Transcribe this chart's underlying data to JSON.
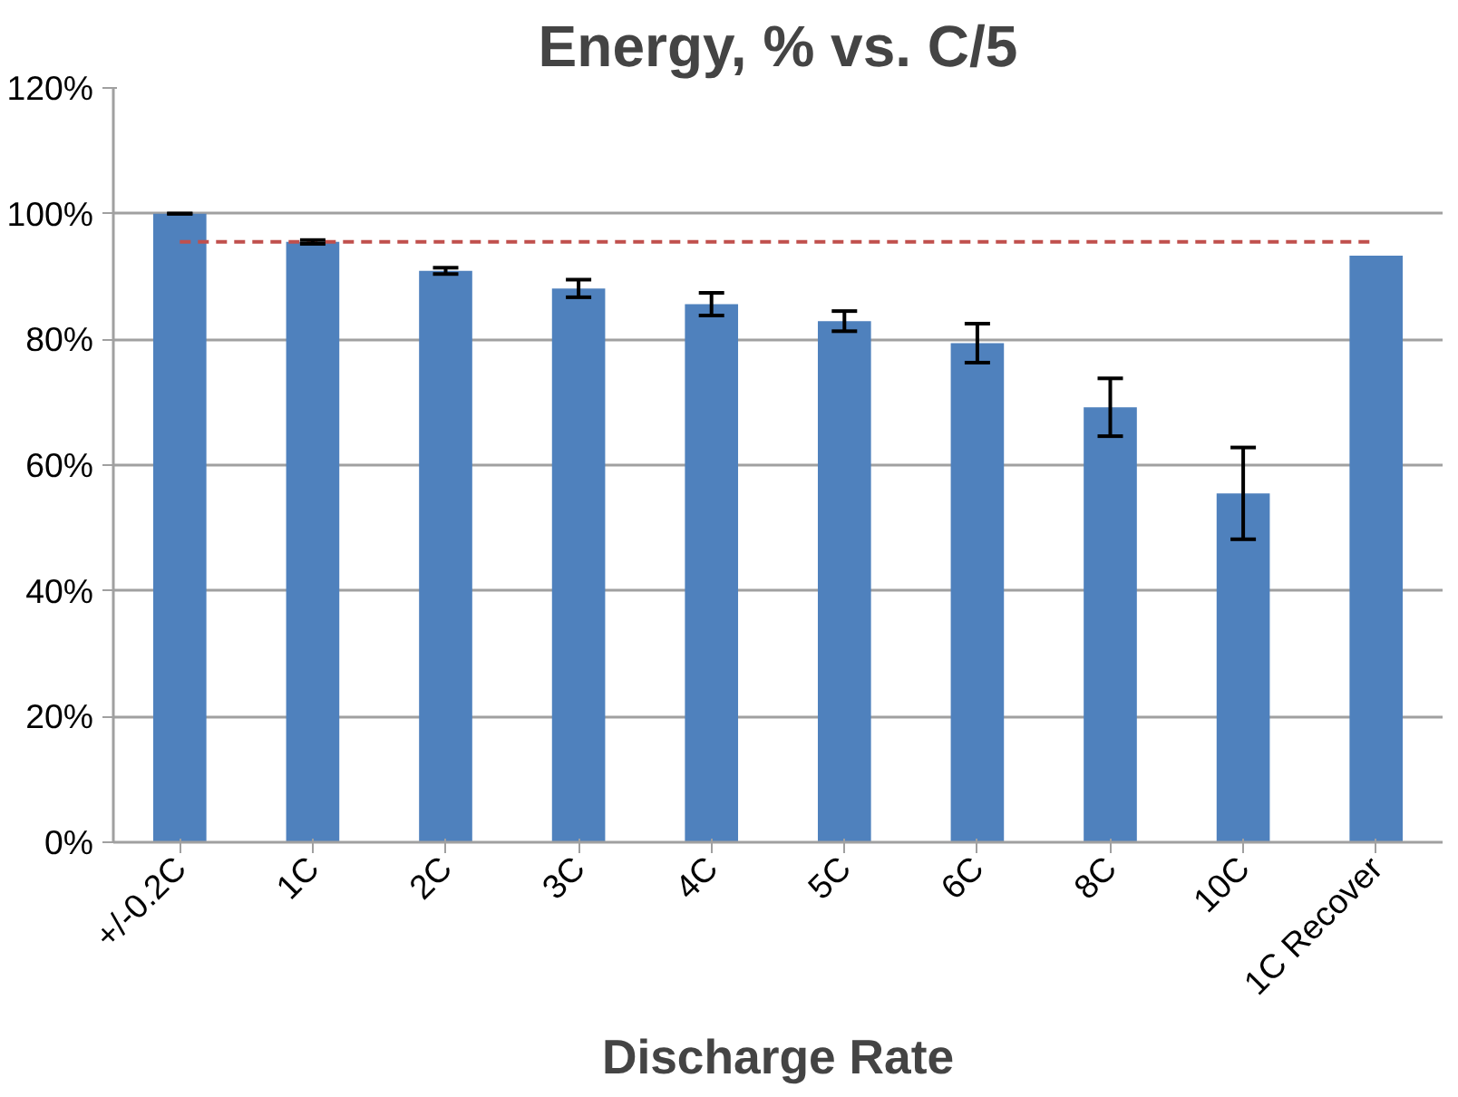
{
  "chart_data": {
    "type": "bar",
    "title": "Energy, % vs. C/5",
    "xlabel": "Discharge Rate",
    "categories": [
      "+/-0.2C",
      "1C",
      "2C",
      "3C",
      "4C",
      "5C",
      "6C",
      "8C",
      "10C",
      "1C Recover"
    ],
    "values": [
      100,
      95.5,
      90.9,
      88.1,
      85.6,
      82.9,
      79.4,
      69.2,
      55.5,
      93.3
    ],
    "errors": [
      0,
      0.3,
      0.5,
      1.4,
      1.8,
      1.6,
      3.1,
      4.6,
      7.3,
      null
    ],
    "color": "#4f81bd",
    "ylim": [
      0,
      120
    ],
    "yticks": [
      {
        "value": 0,
        "label": "0%"
      },
      {
        "value": 20,
        "label": "20%"
      },
      {
        "value": 40,
        "label": "40%"
      },
      {
        "value": 60,
        "label": "60%"
      },
      {
        "value": 80,
        "label": "80%"
      },
      {
        "value": 100,
        "label": "100%"
      },
      {
        "value": 120,
        "label": "120%"
      }
    ],
    "ref_lines": [
      {
        "axis": "y",
        "value": 95.5,
        "color": "#c0504d",
        "line_style": "dashed"
      }
    ],
    "grid": "y"
  }
}
